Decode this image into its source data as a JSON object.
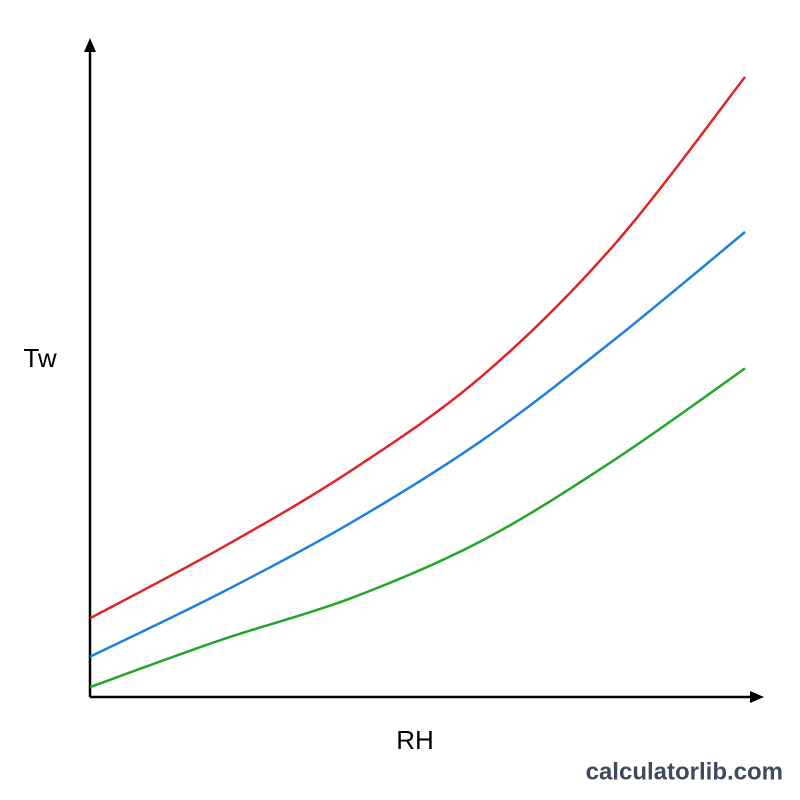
{
  "chart_data": {
    "type": "line",
    "xlabel": "RH",
    "ylabel": "Tw",
    "x": [
      0,
      20,
      40,
      60,
      80,
      100
    ],
    "xlim": [
      0,
      100
    ],
    "ylim": [
      0,
      100
    ],
    "series": [
      {
        "color": "#e02424",
        "values": [
          12.7,
          24,
          36.6,
          51.9,
          72.9,
          100
        ]
      },
      {
        "color": "#1f7fe0",
        "values": [
          6.5,
          16.8,
          28.2,
          41.5,
          57.6,
          75
        ]
      },
      {
        "color": "#22a52a",
        "values": [
          1.6,
          9.2,
          16,
          25.3,
          38.2,
          53
        ]
      }
    ]
  },
  "watermark": "calculatorlib.com"
}
